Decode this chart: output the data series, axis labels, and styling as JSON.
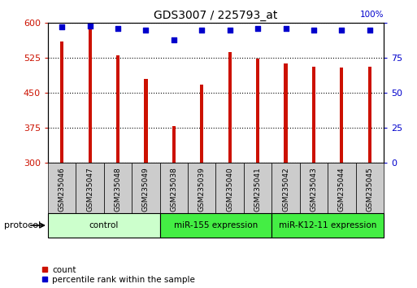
{
  "title": "GDS3007 / 225793_at",
  "samples": [
    "GSM235046",
    "GSM235047",
    "GSM235048",
    "GSM235049",
    "GSM235038",
    "GSM235039",
    "GSM235040",
    "GSM235041",
    "GSM235042",
    "GSM235043",
    "GSM235044",
    "GSM235045"
  ],
  "counts": [
    560,
    590,
    530,
    480,
    378,
    467,
    538,
    524,
    513,
    507,
    505,
    507
  ],
  "percentile_ranks": [
    97,
    98,
    96,
    95,
    88,
    95,
    95,
    96,
    96,
    95,
    95,
    95
  ],
  "groups": [
    {
      "label": "control",
      "start": 0,
      "end": 4,
      "color": "#ccffcc"
    },
    {
      "label": "miR-155 expression",
      "start": 4,
      "end": 8,
      "color": "#44ee44"
    },
    {
      "label": "miR-K12-11 expression",
      "start": 8,
      "end": 12,
      "color": "#44ee44"
    }
  ],
  "bar_color": "#cc1100",
  "dot_color": "#0000cc",
  "ylim_left": [
    300,
    600
  ],
  "ylim_right": [
    0,
    100
  ],
  "yticks_left": [
    300,
    375,
    450,
    525,
    600
  ],
  "yticks_right": [
    0,
    25,
    50,
    75,
    100
  ],
  "bar_width": 0.12,
  "legend_count_label": "count",
  "legend_pct_label": "percentile rank within the sample",
  "protocol_label": "protocol",
  "sample_box_color": "#cccccc",
  "fig_width": 5.13,
  "fig_height": 3.54
}
